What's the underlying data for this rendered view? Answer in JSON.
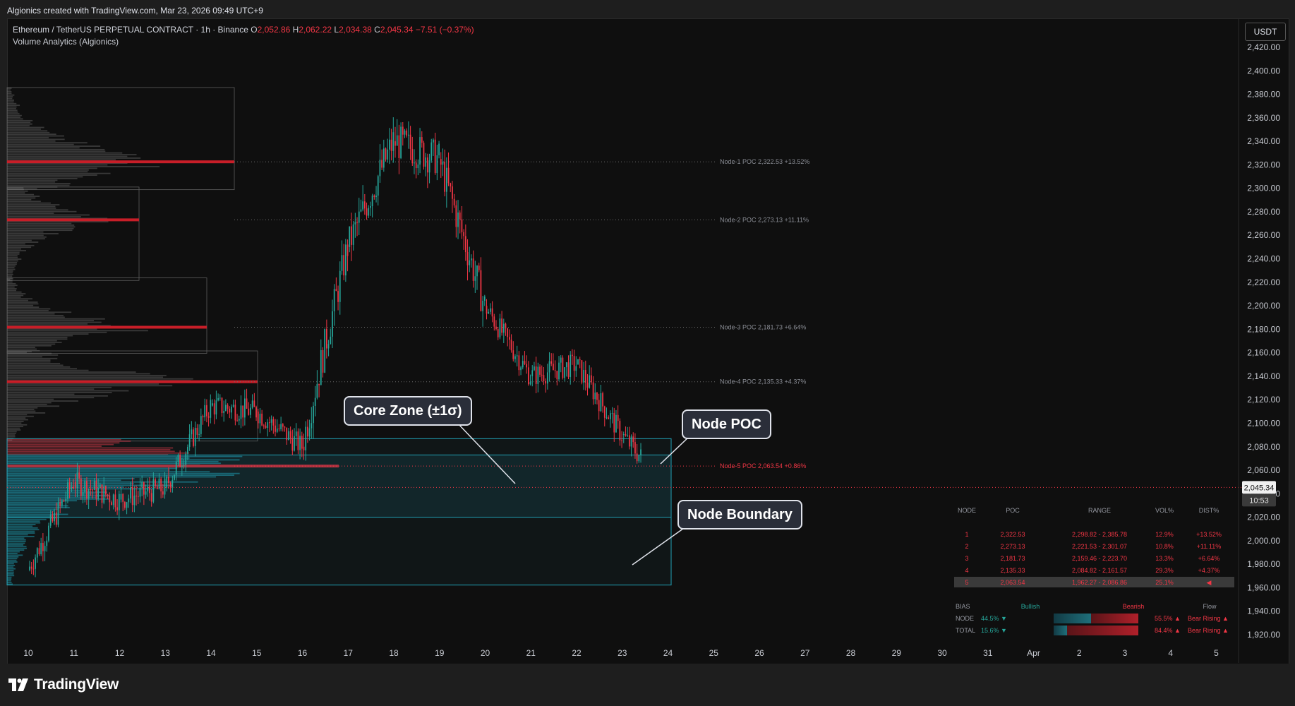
{
  "window": {
    "attribution": "Algionics created with TradingView.com, Mar 23, 2026 09:49 UTC+9",
    "currency_button": "USDT",
    "brand": "TradingView"
  },
  "legend": {
    "pair": "Ethereum / TetherUS PERPETUAL CONTRACT · 1h · Binance",
    "o_label": "O",
    "o": "2,052.86",
    "h_label": "H",
    "h": "2,062.22",
    "l_label": "L",
    "l": "2,034.38",
    "c_label": "C",
    "c": "2,045.34",
    "change": "−7.51 (−0.37%)",
    "indicator": "Volume Analytics (Algionics)"
  },
  "callouts": {
    "core_zone": "Core Zone (±1σ)",
    "node_poc": "Node POC",
    "node_boundary": "Node Boundary"
  },
  "colors": {
    "bull": "#26a69a",
    "bear": "#f23645",
    "poc": "#c81e28",
    "zone": "#21a0b4"
  },
  "poc_labels": [
    {
      "text": "Node-1 POC 2,322.53 +13.52%",
      "price": 2322.53,
      "muted": true
    },
    {
      "text": "Node-2 POC 2,273.13 +11.11%",
      "price": 2273.13,
      "muted": true
    },
    {
      "text": "Node-3 POC 2,181.73 +6.64%",
      "price": 2181.73,
      "muted": true
    },
    {
      "text": "Node-4 POC 2,135.33 +4.37%",
      "price": 2135.33,
      "muted": true
    },
    {
      "text": "Node-5 POC 2,063.54 +0.86%",
      "price": 2063.54,
      "muted": false
    }
  ],
  "node_table": {
    "headers": [
      "NODE",
      "POC",
      "RANGE",
      "VOL%",
      "DIST%"
    ],
    "rows": [
      [
        "1",
        "2,322.53",
        "2,298.82 - 2,385.78",
        "12.9%",
        "+13.52%"
      ],
      [
        "2",
        "2,273.13",
        "2,221.53 - 2,301.07",
        "10.8%",
        "+11.11%"
      ],
      [
        "3",
        "2,181.73",
        "2,159.46 - 2,223.70",
        "13.3%",
        "+6.64%"
      ],
      [
        "4",
        "2,135.33",
        "2,084.82 - 2,161.57",
        "29.3%",
        "+4.37%"
      ],
      [
        "5",
        "2,063.54",
        "1,962.27 - 2,086.86",
        "25.1%",
        "◀"
      ]
    ],
    "bias": {
      "label": "BIAS",
      "bullish": "Bullish",
      "bearish": "Bearish",
      "flow": "Flow",
      "rows": [
        {
          "name": "NODE",
          "bull": "44.5% ▼",
          "bear": "55.5% ▲",
          "flow": "Bear Rising ▲",
          "bull_pct": 44.5
        },
        {
          "name": "TOTAL",
          "bull": "15.6% ▼",
          "bear": "84.4% ▲",
          "flow": "Bear Rising ▲",
          "bull_pct": 15.6
        }
      ]
    }
  },
  "chart_data": {
    "type": "candlestick",
    "title": "",
    "ylim": [
      1908,
      2432
    ],
    "y_ticks": [
      "2,420.00",
      "2,400.00",
      "2,380.00",
      "2,360.00",
      "2,340.00",
      "2,320.00",
      "2,300.00",
      "2,280.00",
      "2,260.00",
      "2,240.00",
      "2,220.00",
      "2,200.00",
      "2,180.00",
      "2,160.00",
      "2,140.00",
      "2,120.00",
      "2,100.00",
      "2,080.00",
      "2,060.00",
      "2,040.00",
      "2,020.00",
      "2,000.00",
      "1,980.00",
      "1,960.00",
      "1,940.00",
      "1,920.00"
    ],
    "x_ticks": [
      "10",
      "11",
      "12",
      "13",
      "14",
      "15",
      "16",
      "17",
      "18",
      "19",
      "20",
      "21",
      "22",
      "23",
      "24",
      "25",
      "26",
      "27",
      "28",
      "29",
      "30",
      "31",
      "Apr",
      "2",
      "3",
      "4",
      "5"
    ],
    "current_price": 2045.34,
    "current_price_label": "2,045.34",
    "countdown": "10:53",
    "price_path_daily": [
      {
        "day": "10",
        "start": 1975,
        "end": 2050
      },
      {
        "day": "11",
        "start": 2050,
        "end": 2035
      },
      {
        "day": "12",
        "start": 2035,
        "end": 2045
      },
      {
        "day": "13",
        "start": 2045,
        "end": 2115
      },
      {
        "day": "14",
        "start": 2115,
        "end": 2110
      },
      {
        "day": "15",
        "start": 2110,
        "end": 2080
      },
      {
        "day": "16",
        "start": 2080,
        "end": 2250
      },
      {
        "day": "17",
        "start": 2250,
        "end": 2340
      },
      {
        "day": "18",
        "start": 2340,
        "end": 2325
      },
      {
        "day": "19",
        "start": 2325,
        "end": 2200
      },
      {
        "day": "20",
        "start": 2200,
        "end": 2140
      },
      {
        "day": "21",
        "start": 2140,
        "end": 2150
      },
      {
        "day": "22",
        "start": 2150,
        "end": 2090
      },
      {
        "day": "23",
        "start": 2090,
        "end": 2045
      }
    ],
    "node_boxes": [
      {
        "node": 1,
        "low": 2298.82,
        "high": 2385.78,
        "poc": 2322.53
      },
      {
        "node": 2,
        "low": 2221.53,
        "high": 2301.07,
        "poc": 2273.13
      },
      {
        "node": 3,
        "low": 2159.46,
        "high": 2223.7,
        "poc": 2181.73
      },
      {
        "node": 4,
        "low": 2084.82,
        "high": 2161.57,
        "poc": 2135.33
      },
      {
        "node": 5,
        "low": 1962.27,
        "high": 2086.86,
        "poc": 2063.54
      }
    ],
    "core_zone": {
      "low": 2020,
      "high": 2073
    }
  }
}
